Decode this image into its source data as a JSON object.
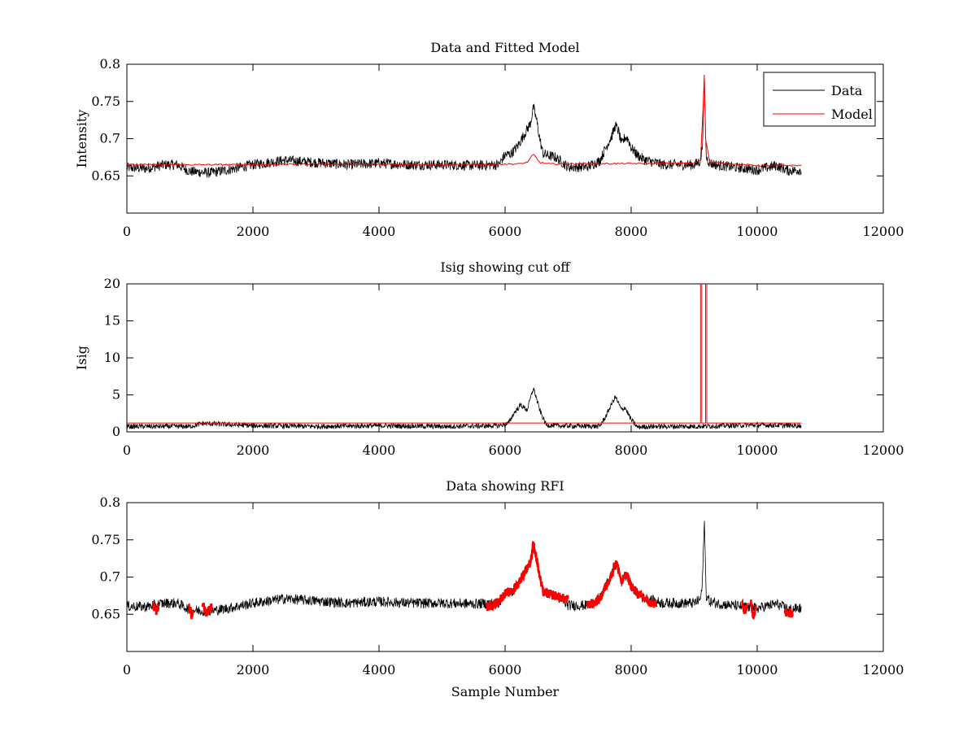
{
  "chart_data": [
    {
      "type": "line",
      "title": "Data and Fitted Model",
      "xlabel": "",
      "ylabel": "Intensity",
      "xlim": [
        0,
        12000
      ],
      "ylim": [
        0.6,
        0.8
      ],
      "xticks": [
        0,
        2000,
        4000,
        6000,
        8000,
        10000,
        12000
      ],
      "yticks": [
        0.65,
        0.7,
        0.75,
        0.8
      ],
      "ytick_labels": [
        "0.65",
        "0.7",
        "0.75",
        "0.8"
      ],
      "legend": "top-right",
      "series": [
        {
          "name": "Data",
          "color": "#000000",
          "x": [
            0,
            300,
            600,
            800,
            1000,
            1300,
            1600,
            2000,
            2500,
            3000,
            3500,
            4000,
            4500,
            5000,
            5500,
            5900,
            6000,
            6100,
            6200,
            6300,
            6400,
            6450,
            6500,
            6550,
            6600,
            6700,
            6800,
            7000,
            7300,
            7500,
            7600,
            7700,
            7750,
            7800,
            7850,
            7900,
            7950,
            8000,
            8100,
            8200,
            8500,
            9000,
            9100,
            9130,
            9160,
            9190,
            9250,
            9400,
            9800,
            10000,
            10300,
            10500,
            10700
          ],
          "y": [
            0.661,
            0.66,
            0.665,
            0.665,
            0.656,
            0.654,
            0.658,
            0.665,
            0.671,
            0.668,
            0.665,
            0.667,
            0.665,
            0.665,
            0.664,
            0.665,
            0.678,
            0.68,
            0.69,
            0.705,
            0.72,
            0.742,
            0.725,
            0.7,
            0.68,
            0.677,
            0.675,
            0.662,
            0.662,
            0.67,
            0.688,
            0.705,
            0.718,
            0.71,
            0.692,
            0.702,
            0.7,
            0.688,
            0.678,
            0.672,
            0.665,
            0.665,
            0.67,
            0.69,
            0.782,
            0.675,
            0.667,
            0.664,
            0.66,
            0.658,
            0.664,
            0.657,
            0.658
          ]
        },
        {
          "name": "Model",
          "color": "#ff0000",
          "x": [
            0,
            2000,
            3000,
            5500,
            6000,
            6200,
            6350,
            6450,
            6550,
            6700,
            9000,
            9100,
            9140,
            9160,
            9180,
            9250,
            10000,
            10700
          ],
          "y": [
            0.665,
            0.665,
            0.666,
            0.665,
            0.666,
            0.666,
            0.668,
            0.679,
            0.668,
            0.666,
            0.667,
            0.672,
            0.74,
            0.785,
            0.7,
            0.668,
            0.664,
            0.664
          ]
        }
      ]
    },
    {
      "type": "line",
      "title": "Isig showing cut off",
      "xlabel": "",
      "ylabel": "Isig",
      "xlim": [
        0,
        12000
      ],
      "ylim": [
        0,
        20
      ],
      "xticks": [
        0,
        2000,
        4000,
        6000,
        8000,
        10000,
        12000
      ],
      "yticks": [
        0,
        5,
        10,
        15,
        20
      ],
      "ytick_labels": [
        "0",
        "5",
        "10",
        "15",
        "20"
      ],
      "series": [
        {
          "color": "#000000",
          "x": [
            0,
            1000,
            1200,
            2000,
            3000,
            4000,
            5000,
            5900,
            6050,
            6150,
            6250,
            6350,
            6450,
            6550,
            6650,
            6800,
            7500,
            7600,
            7700,
            7750,
            7850,
            7900,
            8000,
            8100,
            8300,
            9000,
            9500,
            10000,
            10700
          ],
          "y": [
            0.6,
            0.6,
            1.0,
            0.7,
            0.6,
            0.7,
            0.6,
            0.7,
            1.0,
            2.5,
            3.5,
            2.8,
            5.8,
            2.8,
            0.8,
            0.7,
            0.6,
            2.0,
            3.8,
            4.6,
            2.8,
            3.2,
            1.5,
            0.5,
            0.6,
            0.6,
            0.7,
            0.8,
            0.7
          ]
        },
        {
          "color": "#ff0000",
          "x": [
            0,
            9100,
            9100,
            9120,
            9120,
            9180,
            9180,
            9200,
            9200,
            10700
          ],
          "y": [
            1.2,
            1.2,
            20,
            20,
            1.2,
            1.2,
            20,
            20,
            1.2,
            1.2
          ]
        }
      ]
    },
    {
      "type": "line",
      "title": "Data showing RFI",
      "xlabel": "Sample Number",
      "ylabel": "",
      "xlim": [
        0,
        12000
      ],
      "ylim": [
        0.6,
        0.8
      ],
      "xticks": [
        0,
        2000,
        4000,
        6000,
        8000,
        10000,
        12000
      ],
      "yticks": [
        0.65,
        0.7,
        0.75,
        0.8
      ],
      "ytick_labels": [
        "0.65",
        "0.7",
        "0.75",
        "0.8"
      ],
      "series": [
        {
          "color": "#000000",
          "x": [
            0,
            300,
            600,
            800,
            1000,
            1300,
            1600,
            2000,
            2500,
            3000,
            3500,
            4000,
            4500,
            5000,
            5500,
            5900,
            6000,
            6100,
            6200,
            6300,
            6400,
            6450,
            6500,
            6550,
            6600,
            6700,
            6800,
            7000,
            7300,
            7500,
            7600,
            7700,
            7750,
            7800,
            7850,
            7900,
            7950,
            8000,
            8100,
            8200,
            8500,
            9000,
            9100,
            9130,
            9160,
            9190,
            9250,
            9400,
            9800,
            10000,
            10300,
            10500,
            10700
          ],
          "y": [
            0.661,
            0.66,
            0.665,
            0.665,
            0.656,
            0.654,
            0.658,
            0.665,
            0.671,
            0.668,
            0.665,
            0.667,
            0.665,
            0.665,
            0.664,
            0.665,
            0.678,
            0.68,
            0.69,
            0.705,
            0.72,
            0.742,
            0.725,
            0.7,
            0.68,
            0.677,
            0.675,
            0.662,
            0.662,
            0.67,
            0.688,
            0.705,
            0.718,
            0.71,
            0.692,
            0.702,
            0.7,
            0.688,
            0.678,
            0.672,
            0.665,
            0.665,
            0.67,
            0.69,
            0.78,
            0.675,
            0.667,
            0.664,
            0.66,
            0.658,
            0.664,
            0.657,
            0.658
          ]
        },
        {
          "color": "#ff0000",
          "marker": "+",
          "segments": [
            {
              "x": [
                420,
                460,
                500
              ],
              "y": [
                0.662,
                0.654,
                0.66
              ]
            },
            {
              "x": [
                980,
                1020,
                1060
              ],
              "y": [
                0.662,
                0.648,
                0.658
              ]
            },
            {
              "x": [
                1200,
                1250,
                1300,
                1350
              ],
              "y": [
                0.665,
                0.652,
                0.656,
                0.66
              ]
            },
            {
              "x": [
                5700,
                5800,
                5900,
                6000,
                6100,
                6200,
                6300,
                6400,
                6450,
                6500,
                6550,
                6600,
                6700,
                6800,
                6900,
                7000
              ],
              "y": [
                0.66,
                0.662,
                0.668,
                0.678,
                0.68,
                0.69,
                0.705,
                0.72,
                0.745,
                0.725,
                0.7,
                0.68,
                0.677,
                0.675,
                0.672,
                0.67
              ]
            },
            {
              "x": [
                7300,
                7400,
                7500,
                7600,
                7700,
                7750,
                7800,
                7850,
                7900,
                7950,
                8000,
                8100,
                8200,
                8300,
                8400
              ],
              "y": [
                0.662,
                0.665,
                0.67,
                0.688,
                0.705,
                0.722,
                0.71,
                0.692,
                0.702,
                0.7,
                0.688,
                0.678,
                0.672,
                0.665,
                0.663
              ]
            },
            {
              "x": [
                9760,
                9800,
                9840
              ],
              "y": [
                0.662,
                0.654,
                0.66
              ]
            },
            {
              "x": [
                9900,
                9940,
                9980
              ],
              "y": [
                0.664,
                0.648,
                0.66
              ]
            },
            {
              "x": [
                10440,
                10500,
                10560
              ],
              "y": [
                0.652,
                0.65,
                0.652
              ]
            }
          ]
        }
      ]
    }
  ]
}
